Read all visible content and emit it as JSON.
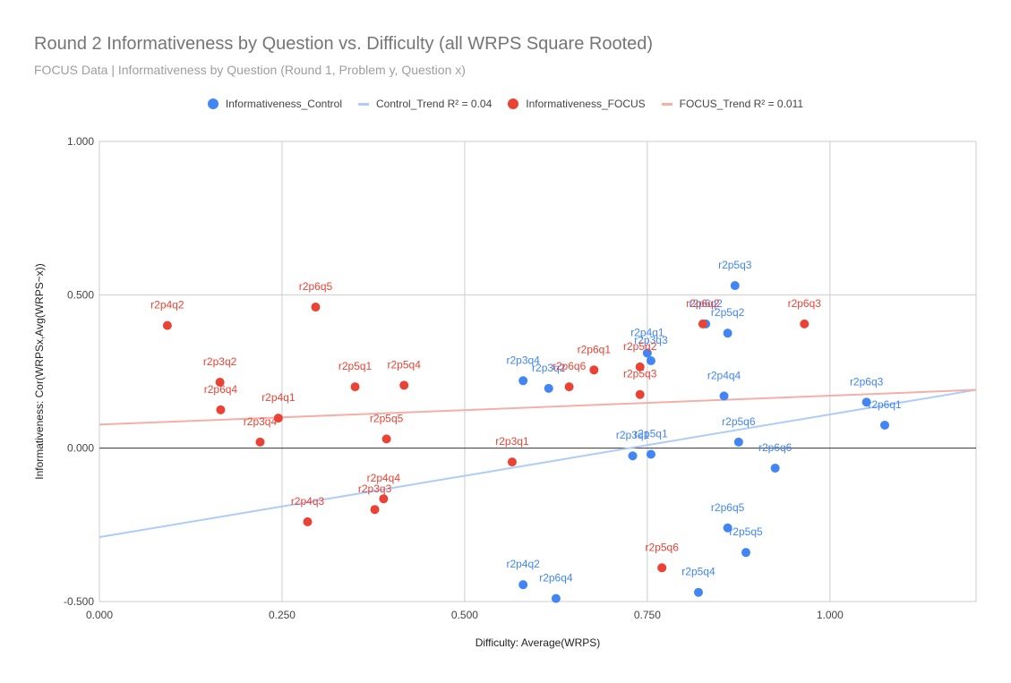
{
  "chart_data": {
    "type": "scatter",
    "title": "Round 2 Informativeness by Question vs. Difficulty (all WRPS Square Rooted)",
    "subtitle": "FOCUS Data | Informativeness by Question (Round 1, Problem y, Question x)",
    "xlabel": "Difficulty: Average(WRPS)",
    "ylabel": "Informativeness: Cor(WRPSx,Avg(WRPS~x))",
    "xlim": [
      0,
      1.2
    ],
    "ylim": [
      -0.5,
      1.0
    ],
    "x_ticks": [
      "0.000",
      "0.250",
      "0.500",
      "0.750",
      "1.000"
    ],
    "y_ticks": [
      "-0.500",
      "0.000",
      "0.500",
      "1.000"
    ],
    "grid": true,
    "legend_position": "top",
    "colors": {
      "control": "#4285f4",
      "focus": "#ea4335",
      "control_trend": "#aecbfa",
      "focus_trend": "#f4b0a8"
    },
    "legend": [
      {
        "label": "Informativeness_Control",
        "kind": "dot",
        "color": "#4285f4"
      },
      {
        "label": "Control_Trend R² = 0.04",
        "kind": "line",
        "color": "#aecbfa"
      },
      {
        "label": "Informativeness_FOCUS",
        "kind": "dot",
        "color": "#ea4335"
      },
      {
        "label": "FOCUS_Trend R² = 0.011",
        "kind": "line",
        "color": "#f4b0a8"
      }
    ],
    "series": [
      {
        "name": "Informativeness_Control",
        "points": [
          {
            "label": "r2p5q3",
            "x": 0.87,
            "y": 0.53
          },
          {
            "label": "r2p5q2",
            "x": 0.86,
            "y": 0.375
          },
          {
            "label": "r2p6q2",
            "x": 0.83,
            "y": 0.405
          },
          {
            "label": "r2p4q1",
            "x": 0.75,
            "y": 0.31
          },
          {
            "label": "r2p3q3",
            "x": 0.755,
            "y": 0.285
          },
          {
            "label": "r2p3q4",
            "x": 0.58,
            "y": 0.22
          },
          {
            "label": "r2p3q2",
            "x": 0.615,
            "y": 0.195
          },
          {
            "label": "r2p4q4",
            "x": 0.855,
            "y": 0.17
          },
          {
            "label": "r2p6q3",
            "x": 1.05,
            "y": 0.15
          },
          {
            "label": "r2p6q1",
            "x": 1.075,
            "y": 0.075
          },
          {
            "label": "r2p5q6",
            "x": 0.875,
            "y": 0.02
          },
          {
            "label": "r2p3q1",
            "x": 0.73,
            "y": -0.025
          },
          {
            "label": "r2p5q1",
            "x": 0.755,
            "y": -0.02
          },
          {
            "label": "r2p6q6",
            "x": 0.925,
            "y": -0.065
          },
          {
            "label": "r2p6q5",
            "x": 0.86,
            "y": -0.26
          },
          {
            "label": "r2p5q5",
            "x": 0.885,
            "y": -0.34
          },
          {
            "label": "r2p4q2",
            "x": 0.58,
            "y": -0.445
          },
          {
            "label": "r2p6q4",
            "x": 0.625,
            "y": -0.49
          },
          {
            "label": "r2p5q4",
            "x": 0.82,
            "y": -0.47
          }
        ]
      },
      {
        "name": "Informativeness_FOCUS",
        "points": [
          {
            "label": "r2p4q2",
            "x": 0.093,
            "y": 0.4
          },
          {
            "label": "r2p6q5",
            "x": 0.296,
            "y": 0.46
          },
          {
            "label": "r2p3q2",
            "x": 0.165,
            "y": 0.215
          },
          {
            "label": "r2p6q4",
            "x": 0.166,
            "y": 0.125
          },
          {
            "label": "r2p4q1",
            "x": 0.245,
            "y": 0.098
          },
          {
            "label": "r2p3q4",
            "x": 0.22,
            "y": 0.02
          },
          {
            "label": "r2p5q1",
            "x": 0.35,
            "y": 0.2
          },
          {
            "label": "r2p5q4",
            "x": 0.417,
            "y": 0.205
          },
          {
            "label": "r2p5q5",
            "x": 0.393,
            "y": 0.03
          },
          {
            "label": "r2p4q4",
            "x": 0.389,
            "y": -0.165
          },
          {
            "label": "r2p3q3",
            "x": 0.377,
            "y": -0.2
          },
          {
            "label": "r2p4q3",
            "x": 0.285,
            "y": -0.24
          },
          {
            "label": "r2p3q1",
            "x": 0.565,
            "y": -0.045
          },
          {
            "label": "r2p6q6",
            "x": 0.643,
            "y": 0.2
          },
          {
            "label": "r2p6q1",
            "x": 0.677,
            "y": 0.255
          },
          {
            "label": "r2p5q2",
            "x": 0.74,
            "y": 0.265
          },
          {
            "label": "r2p5q3",
            "x": 0.74,
            "y": 0.175
          },
          {
            "label": "r2p6q2",
            "x": 0.826,
            "y": 0.405
          },
          {
            "label": "r2p6q3",
            "x": 0.965,
            "y": 0.405
          },
          {
            "label": "r2p5q6",
            "x": 0.77,
            "y": -0.39
          }
        ]
      }
    ],
    "trendlines": [
      {
        "name": "Control_Trend",
        "r2": 0.04,
        "x": [
          0,
          1.2
        ],
        "y": [
          -0.29,
          0.19
        ]
      },
      {
        "name": "FOCUS_Trend",
        "r2": 0.011,
        "x": [
          0,
          1.2
        ],
        "y": [
          0.077,
          0.19
        ]
      }
    ]
  }
}
